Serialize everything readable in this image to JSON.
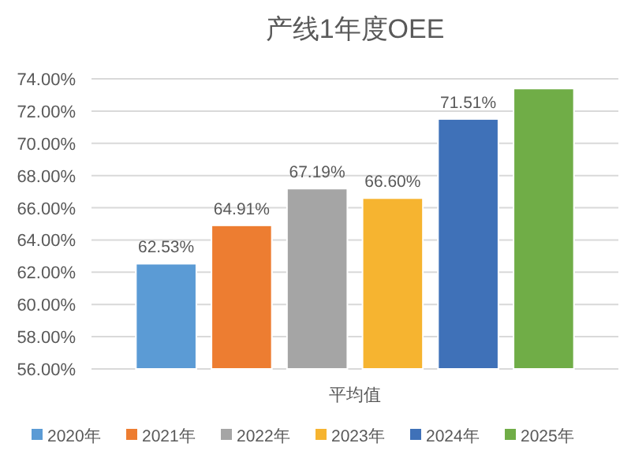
{
  "chart_data": {
    "type": "bar",
    "title": "产线1年度OEE",
    "categories": [
      "平均值"
    ],
    "series": [
      {
        "name": "2020年",
        "color": "#5b9bd5",
        "values": [
          62.53
        ],
        "value_labels": [
          "62.53%"
        ]
      },
      {
        "name": "2021年",
        "color": "#ed7d31",
        "values": [
          64.91
        ],
        "value_labels": [
          "64.91%"
        ]
      },
      {
        "name": "2022年",
        "color": "#a5a5a5",
        "values": [
          67.19
        ],
        "value_labels": [
          "67.19%"
        ]
      },
      {
        "name": "2023年",
        "color": "#f6b430",
        "values": [
          66.6
        ],
        "value_labels": [
          "66.60%"
        ]
      },
      {
        "name": "2024年",
        "color": "#3f71b8",
        "values": [
          71.51
        ],
        "value_labels": [
          "71.51%"
        ]
      },
      {
        "name": "2025年",
        "color": "#70ad47",
        "values": [
          73.4
        ],
        "value_labels": [
          null
        ]
      }
    ],
    "ylim": [
      56,
      74
    ],
    "yticks": [
      {
        "value": 56,
        "label": "56.00%"
      },
      {
        "value": 58,
        "label": "58.00%"
      },
      {
        "value": 60,
        "label": "60.00%"
      },
      {
        "value": 62,
        "label": "62.00%"
      },
      {
        "value": 64,
        "label": "64.00%"
      },
      {
        "value": 66,
        "label": "66.00%"
      },
      {
        "value": 68,
        "label": "68.00%"
      },
      {
        "value": 70,
        "label": "70.00%"
      },
      {
        "value": 72,
        "label": "72.00%"
      },
      {
        "value": 74,
        "label": "74.00%"
      }
    ],
    "grid": "y",
    "legend": "bottom"
  }
}
